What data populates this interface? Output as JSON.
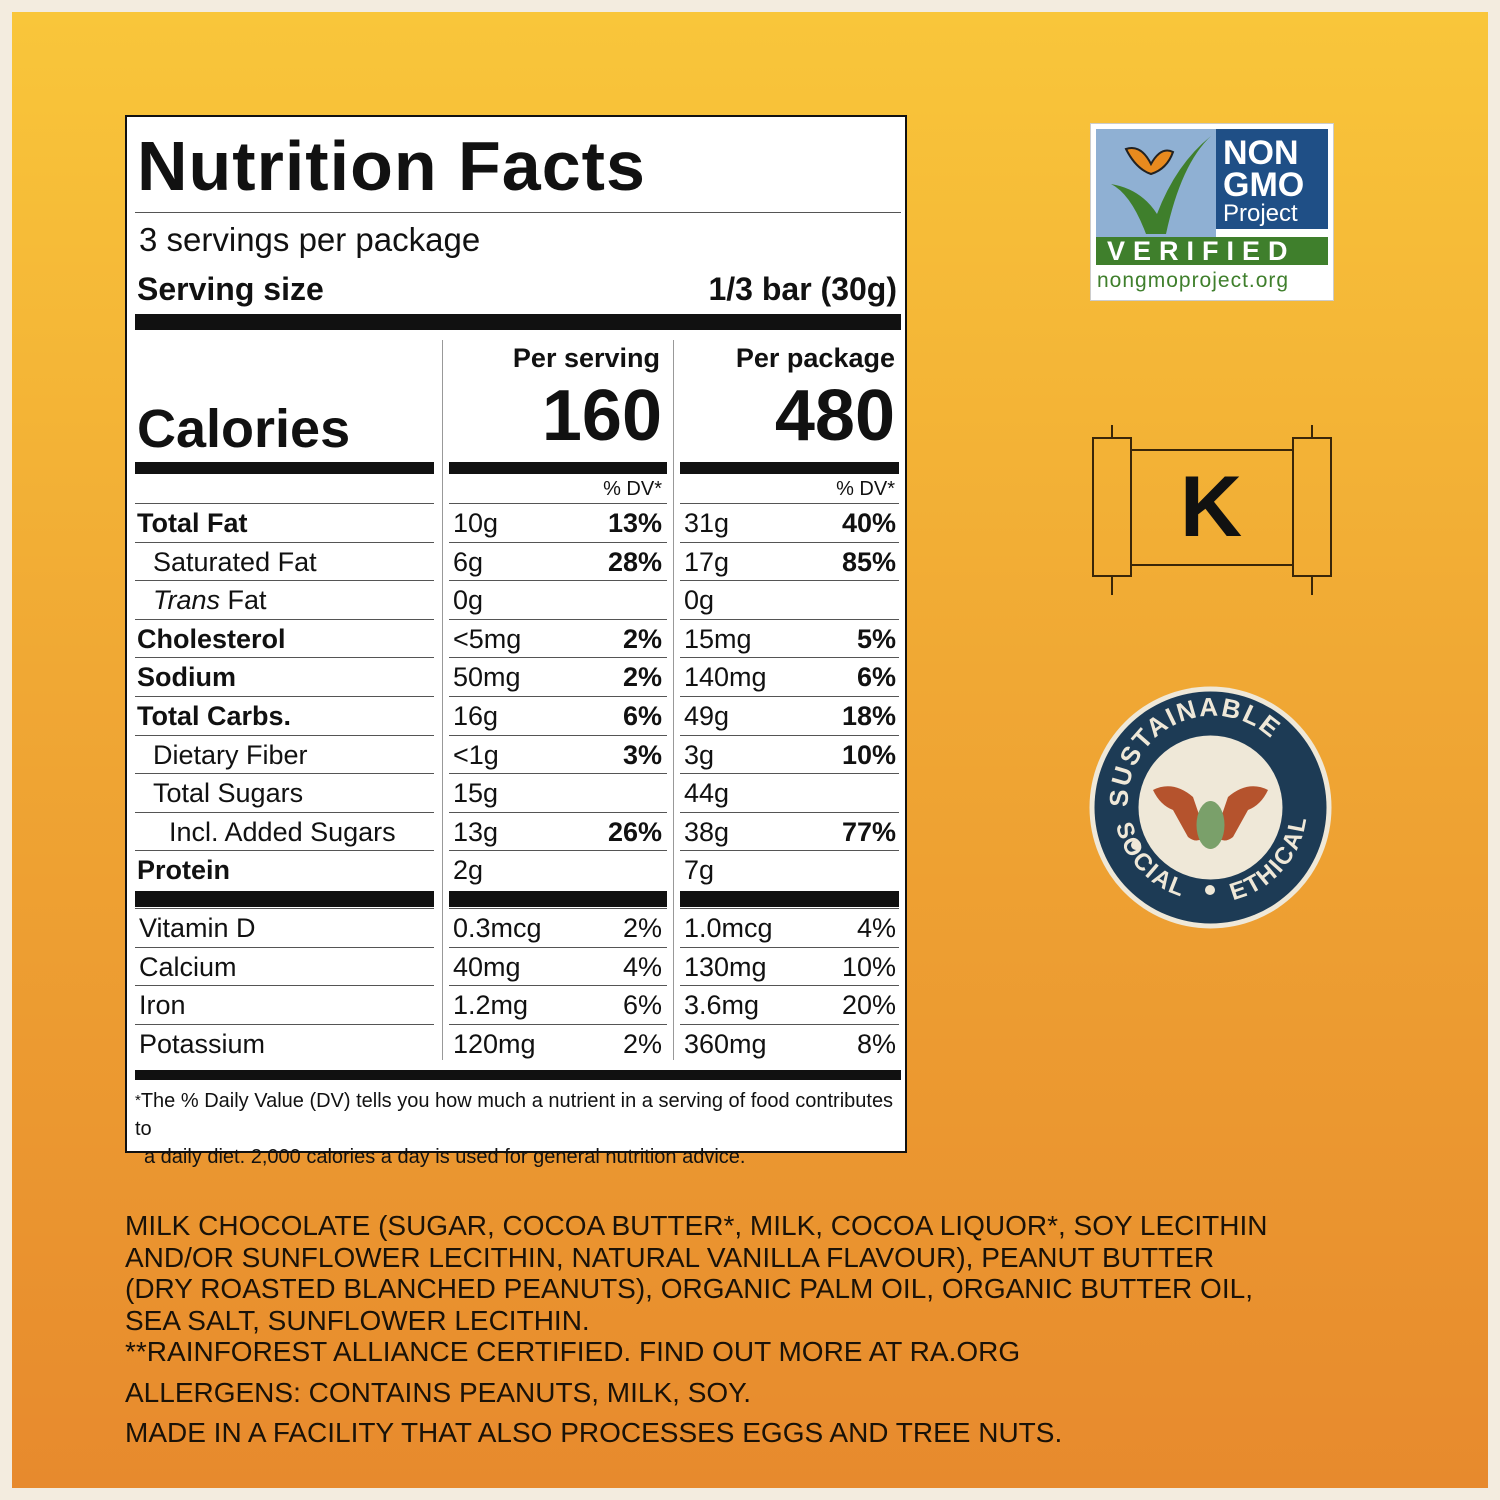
{
  "nutrition": {
    "title": "Nutrition Facts",
    "servings_per_package": "3 servings per package",
    "serving_size_label": "Serving size",
    "serving_size_value": "1/3 bar (30g)",
    "per_serving_label": "Per serving",
    "per_package_label": "Per package",
    "calories_label": "Calories",
    "calories_serving": "160",
    "calories_package": "480",
    "dv_header": "% DV*",
    "nutrients": [
      {
        "name": "Total Fat",
        "serving": "10g",
        "serving_dv": "13%",
        "package": "31g",
        "package_dv": "40%"
      },
      {
        "name": "Saturated Fat",
        "serving": "6g",
        "serving_dv": "28%",
        "package": "17g",
        "package_dv": "85%"
      },
      {
        "name_italic": "Trans",
        "name": " Fat",
        "serving": "0g",
        "serving_dv": "",
        "package": "0g",
        "package_dv": ""
      },
      {
        "name": "Cholesterol",
        "serving": "<5mg",
        "serving_dv": "2%",
        "package": "15mg",
        "package_dv": "5%"
      },
      {
        "name": "Sodium",
        "serving": "50mg",
        "serving_dv": "2%",
        "package": "140mg",
        "package_dv": "6%"
      },
      {
        "name": "Total Carbs.",
        "serving": "16g",
        "serving_dv": "6%",
        "package": "49g",
        "package_dv": "18%"
      },
      {
        "name": "Dietary Fiber",
        "serving": "<1g",
        "serving_dv": "3%",
        "package": "3g",
        "package_dv": "10%"
      },
      {
        "name": "Total Sugars",
        "serving": "15g",
        "serving_dv": "",
        "package": "44g",
        "package_dv": ""
      },
      {
        "name": "Incl. Added Sugars",
        "serving": "13g",
        "serving_dv": "26%",
        "package": "38g",
        "package_dv": "77%"
      },
      {
        "name": "Protein",
        "serving": "2g",
        "serving_dv": "",
        "package": "7g",
        "package_dv": ""
      }
    ],
    "vitamins": [
      {
        "name": "Vitamin D",
        "serving": "0.3mcg",
        "serving_dv": "2%",
        "package": "1.0mcg",
        "package_dv": "4%"
      },
      {
        "name": "Calcium",
        "serving": "40mg",
        "serving_dv": "4%",
        "package": "130mg",
        "package_dv": "10%"
      },
      {
        "name": "Iron",
        "serving": "1.2mg",
        "serving_dv": "6%",
        "package": "3.6mg",
        "package_dv": "20%"
      },
      {
        "name": "Potassium",
        "serving": "120mg",
        "serving_dv": "2%",
        "package": "360mg",
        "package_dv": "8%"
      }
    ],
    "footnote_mark": "*",
    "footnote_line1": "The % Daily Value (DV) tells you how much a nutrient in a serving of food contributes to",
    "footnote_line2": "a daily diet. 2,000 calories a day is used for general nutrition advice."
  },
  "ingredients": {
    "line1": "MILK CHOCOLATE (SUGAR, COCOA BUTTER*, MILK, COCOA LIQUOR*, SOY LECITHIN",
    "line2": "AND/OR SUNFLOWER LECITHIN, NATURAL VANILLA FLAVOUR), PEANUT BUTTER",
    "line3": "(DRY ROASTED BLANCHED PEANUTS), ORGANIC PALM OIL, ORGANIC BUTTER OIL,",
    "line4": "SEA SALT, SUNFLOWER LECITHIN.",
    "line5": "**RAINFOREST ALLIANCE CERTIFIED. FIND OUT MORE AT RA.ORG",
    "allergens": "ALLERGENS: CONTAINS PEANUTS, MILK, SOY.",
    "facility": "MADE IN A FACILITY THAT ALSO PROCESSES EGGS AND TREE NUTS."
  },
  "badges": {
    "nongmo_line1": "NON",
    "nongmo_line2": "GMO",
    "nongmo_line3": "Project",
    "nongmo_verified": "VERIFIED",
    "nongmo_url": "nongmoproject.org",
    "kosher_letter": "K",
    "sustainable_top": "SUSTAINABLE",
    "sustainable_left": "SOCIAL",
    "sustainable_right": "ETHICAL"
  },
  "colors": {
    "nongmo_green": "#3f7f2c",
    "nongmo_blue": "#1f4f86",
    "seal_navy": "#1d3b55",
    "seal_hand": "#b5532d",
    "seal_leaf": "#7aa06a"
  }
}
